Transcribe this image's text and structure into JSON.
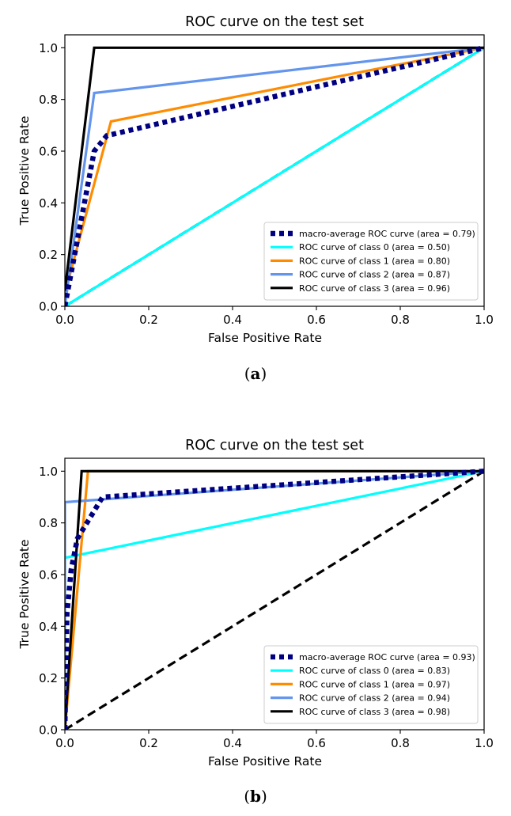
{
  "chart_data": [
    {
      "type": "line",
      "title": "ROC curve on the test set",
      "xlabel": "False Positive Rate",
      "ylabel": "True Positive Rate",
      "xlim": [
        0.0,
        1.0
      ],
      "ylim": [
        0.0,
        1.05
      ],
      "xticks": [
        "0.0",
        "0.2",
        "0.4",
        "0.6",
        "0.8",
        "1.0"
      ],
      "yticks": [
        "0.0",
        "0.2",
        "0.4",
        "0.6",
        "0.8",
        "1.0"
      ],
      "legend_position": "lower-right",
      "grid": false,
      "series": [
        {
          "name": "macro-average ROC curve (area = 0.79)",
          "color": "#000080",
          "style": "dotted",
          "x": [
            0.0,
            0.07,
            0.1,
            1.0
          ],
          "y": [
            0.0,
            0.6,
            0.66,
            1.0
          ]
        },
        {
          "name": "ROC curve of class 0 (area = 0.50)",
          "color": "#00ffff",
          "style": "solid",
          "x": [
            0.0,
            1.0
          ],
          "y": [
            0.0,
            1.0
          ]
        },
        {
          "name": "ROC curve of class 1 (area = 0.80)",
          "color": "#ff8c00",
          "style": "solid",
          "x": [
            0.0,
            0.11,
            1.0
          ],
          "y": [
            0.05,
            0.715,
            1.0
          ]
        },
        {
          "name": "ROC curve of class 2 (area = 0.87)",
          "color": "#6495ed",
          "style": "solid",
          "x": [
            0.0,
            0.07,
            1.0
          ],
          "y": [
            0.0,
            0.825,
            1.0
          ]
        },
        {
          "name": "ROC curve of class 3 (area = 0.96)",
          "color": "#000000",
          "style": "solid",
          "x": [
            0.0,
            0.07,
            1.0
          ],
          "y": [
            0.06,
            1.0,
            1.0
          ]
        }
      ],
      "reference_line": {
        "x": [
          0.0,
          1.0
        ],
        "y": [
          0.0,
          1.0
        ],
        "color": "#000000",
        "style": "dashed"
      },
      "caption": "a"
    },
    {
      "type": "line",
      "title": "ROC curve on the test set",
      "xlabel": "False Positive Rate",
      "ylabel": "True Positive Rate",
      "xlim": [
        0.0,
        1.0
      ],
      "ylim": [
        0.0,
        1.05
      ],
      "xticks": [
        "0.0",
        "0.2",
        "0.4",
        "0.6",
        "0.8",
        "1.0"
      ],
      "yticks": [
        "0.0",
        "0.2",
        "0.4",
        "0.6",
        "0.8",
        "1.0"
      ],
      "legend_position": "lower-right",
      "grid": false,
      "series": [
        {
          "name": "macro-average ROC curve (area = 0.93)",
          "color": "#000080",
          "style": "dotted",
          "x": [
            0.0,
            0.005,
            0.015,
            0.03,
            0.09,
            1.0
          ],
          "y": [
            0.0,
            0.45,
            0.62,
            0.74,
            0.9,
            1.0
          ]
        },
        {
          "name": "ROC curve of class 0 (area = 0.83)",
          "color": "#00ffff",
          "style": "solid",
          "x": [
            0.0,
            0.0,
            1.0
          ],
          "y": [
            0.0,
            0.665,
            1.0
          ]
        },
        {
          "name": "ROC curve of class 1 (area = 0.97)",
          "color": "#ff8c00",
          "style": "solid",
          "x": [
            0.0,
            0.055,
            1.0
          ],
          "y": [
            0.0,
            1.0,
            1.0
          ]
        },
        {
          "name": "ROC curve of class 2 (area = 0.94)",
          "color": "#6495ed",
          "style": "solid",
          "x": [
            0.0,
            0.0,
            1.0
          ],
          "y": [
            0.0,
            0.88,
            1.0
          ]
        },
        {
          "name": "ROC curve of class 3 (area = 0.98)",
          "color": "#000000",
          "style": "solid",
          "x": [
            0.0,
            0.04,
            1.0
          ],
          "y": [
            0.0,
            1.0,
            1.0
          ]
        }
      ],
      "reference_line": {
        "x": [
          0.0,
          1.0
        ],
        "y": [
          0.0,
          1.0
        ],
        "color": "#000000",
        "style": "dashed"
      },
      "caption": "b"
    }
  ]
}
